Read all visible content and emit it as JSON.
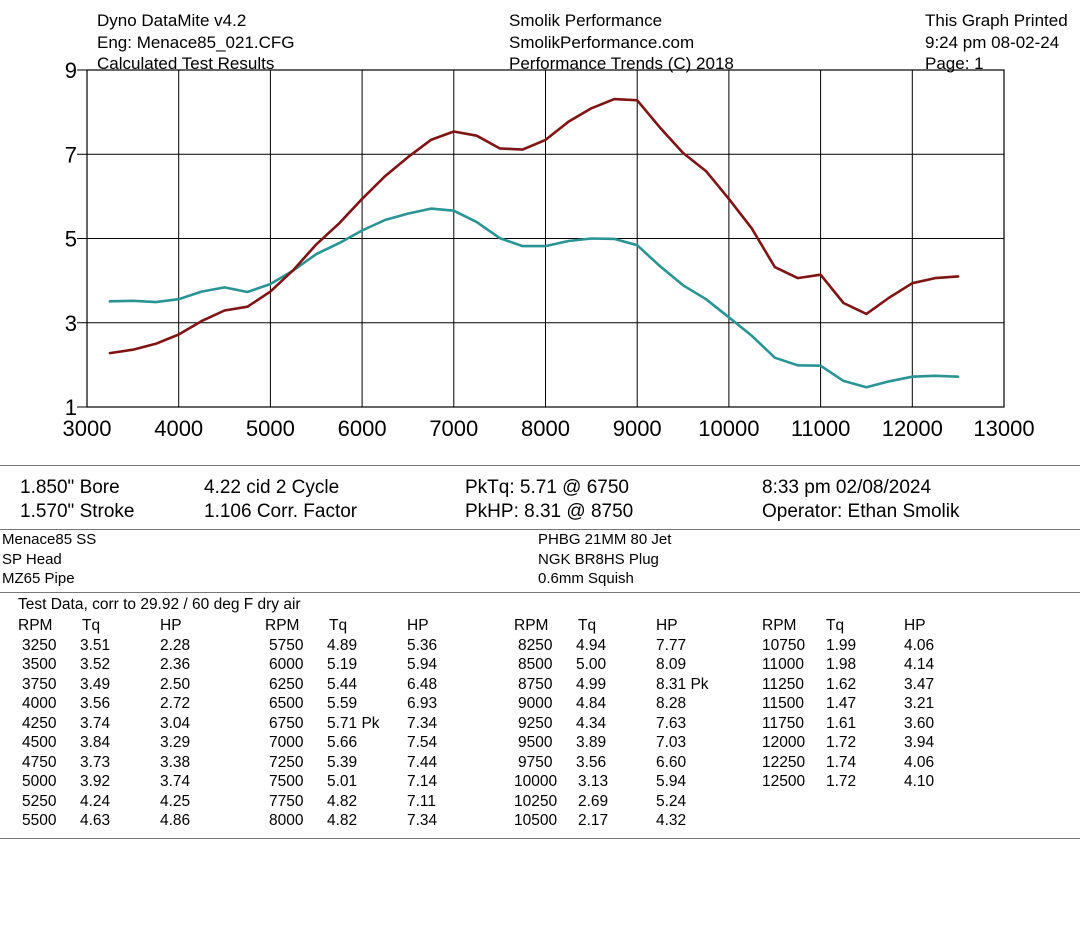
{
  "header": {
    "left": [
      "Dyno DataMite v4.2",
      "Eng: Menace85_021.CFG",
      "Calculated Test Results"
    ],
    "center": [
      "Smolik Performance",
      "SmolikPerformance.com",
      "Performance Trends (C) 2018"
    ],
    "right": [
      "This Graph Printed",
      "9:24 pm 08-02-24",
      "Page: 1"
    ]
  },
  "chart_data": {
    "type": "line",
    "x": [
      3250,
      3500,
      3750,
      4000,
      4250,
      4500,
      4750,
      5000,
      5250,
      5500,
      5750,
      6000,
      6250,
      6500,
      6750,
      7000,
      7250,
      7500,
      7750,
      8000,
      8250,
      8500,
      8750,
      9000,
      9250,
      9500,
      9750,
      10000,
      10250,
      10500,
      10750,
      11000,
      11250,
      11500,
      11750,
      12000,
      12250,
      12500
    ],
    "series": [
      {
        "name": "Tq",
        "color": "#2a9494",
        "values": [
          3.51,
          3.52,
          3.49,
          3.56,
          3.74,
          3.84,
          3.73,
          3.92,
          4.24,
          4.63,
          4.89,
          5.19,
          5.44,
          5.59,
          5.71,
          5.66,
          5.39,
          5.01,
          4.82,
          4.82,
          4.94,
          5.0,
          4.99,
          4.84,
          4.34,
          3.89,
          3.56,
          3.13,
          2.69,
          2.17,
          1.99,
          1.98,
          1.62,
          1.47,
          1.61,
          1.72,
          1.74,
          1.72
        ]
      },
      {
        "name": "HP",
        "color": "#7f1414",
        "values": [
          2.28,
          2.36,
          2.5,
          2.72,
          3.04,
          3.29,
          3.38,
          3.74,
          4.25,
          4.86,
          5.36,
          5.94,
          6.48,
          6.93,
          7.34,
          7.54,
          7.44,
          7.14,
          7.11,
          7.34,
          7.77,
          8.09,
          8.31,
          8.28,
          7.63,
          7.03,
          6.6,
          5.94,
          5.24,
          4.32,
          4.06,
          4.14,
          3.47,
          3.21,
          3.6,
          3.94,
          4.06,
          4.1
        ]
      }
    ],
    "xlim": [
      3000,
      13000
    ],
    "ylim": [
      1,
      9
    ],
    "x_ticks": [
      "3000",
      "4000",
      "5000",
      "6000",
      "7000",
      "8000",
      "9000",
      "10000",
      "11000",
      "12000",
      "13000"
    ],
    "y_ticks": [
      "9",
      "7",
      "5",
      "3",
      "1"
    ],
    "grid": true
  },
  "info": {
    "bore": "1.850\" Bore",
    "stroke": "1.570\" Stroke",
    "cid": "4.22 cid  2 Cycle",
    "corr": "1.106 Corr. Factor",
    "pktq": "PkTq: 5.71 @  6750",
    "pkhp": "PkHP: 8.31 @  8750",
    "datetime": "8:33 pm  02/08/2024",
    "operator": "Operator: Ethan Smolik"
  },
  "setup": {
    "left": [
      "Menace85 SS",
      "SP Head",
      "MZ65 Pipe"
    ],
    "right": [
      "PHBG 21MM 80 Jet",
      "NGK BR8HS Plug",
      "0.6mm Squish"
    ]
  },
  "test_data": {
    "title": "Test Data, corr to 29.92 / 60 deg F dry air",
    "headers": [
      "RPM",
      "Tq",
      "HP"
    ],
    "groups": [
      [
        [
          "3250",
          "3.51",
          "2.28"
        ],
        [
          "3500",
          "3.52",
          "2.36"
        ],
        [
          "3750",
          "3.49",
          "2.50"
        ],
        [
          "4000",
          "3.56",
          "2.72"
        ],
        [
          "4250",
          "3.74",
          "3.04"
        ],
        [
          "4500",
          "3.84",
          "3.29"
        ],
        [
          "4750",
          "3.73",
          "3.38"
        ],
        [
          "5000",
          "3.92",
          "3.74"
        ],
        [
          "5250",
          "4.24",
          "4.25"
        ],
        [
          "5500",
          "4.63",
          "4.86"
        ]
      ],
      [
        [
          "5750",
          "4.89",
          "5.36"
        ],
        [
          "6000",
          "5.19",
          "5.94"
        ],
        [
          "6250",
          "5.44",
          "6.48"
        ],
        [
          "6500",
          "5.59",
          "6.93"
        ],
        [
          "6750",
          "5.71 Pk",
          "7.34"
        ],
        [
          "7000",
          "5.66",
          "7.54"
        ],
        [
          "7250",
          "5.39",
          "7.44"
        ],
        [
          "7500",
          "5.01",
          "7.14"
        ],
        [
          "7750",
          "4.82",
          "7.11"
        ],
        [
          "8000",
          "4.82",
          "7.34"
        ]
      ],
      [
        [
          "8250",
          "4.94",
          "7.77"
        ],
        [
          "8500",
          "5.00",
          "8.09"
        ],
        [
          "8750",
          "4.99",
          "8.31 Pk"
        ],
        [
          "9000",
          "4.84",
          "8.28"
        ],
        [
          "9250",
          "4.34",
          "7.63"
        ],
        [
          "9500",
          "3.89",
          "7.03"
        ],
        [
          "9750",
          "3.56",
          "6.60"
        ],
        [
          "10000",
          "3.13",
          "5.94"
        ],
        [
          "10250",
          "2.69",
          "5.24"
        ],
        [
          "10500",
          "2.17",
          "4.32"
        ]
      ],
      [
        [
          "10750",
          "1.99",
          "4.06"
        ],
        [
          "11000",
          "1.98",
          "4.14"
        ],
        [
          "11250",
          "1.62",
          "3.47"
        ],
        [
          "11500",
          "1.47",
          "3.21"
        ],
        [
          "11750",
          "1.61",
          "3.60"
        ],
        [
          "12000",
          "1.72",
          "3.94"
        ],
        [
          "12250",
          "1.74",
          "4.06"
        ],
        [
          "12500",
          "1.72",
          "4.10"
        ]
      ]
    ]
  }
}
